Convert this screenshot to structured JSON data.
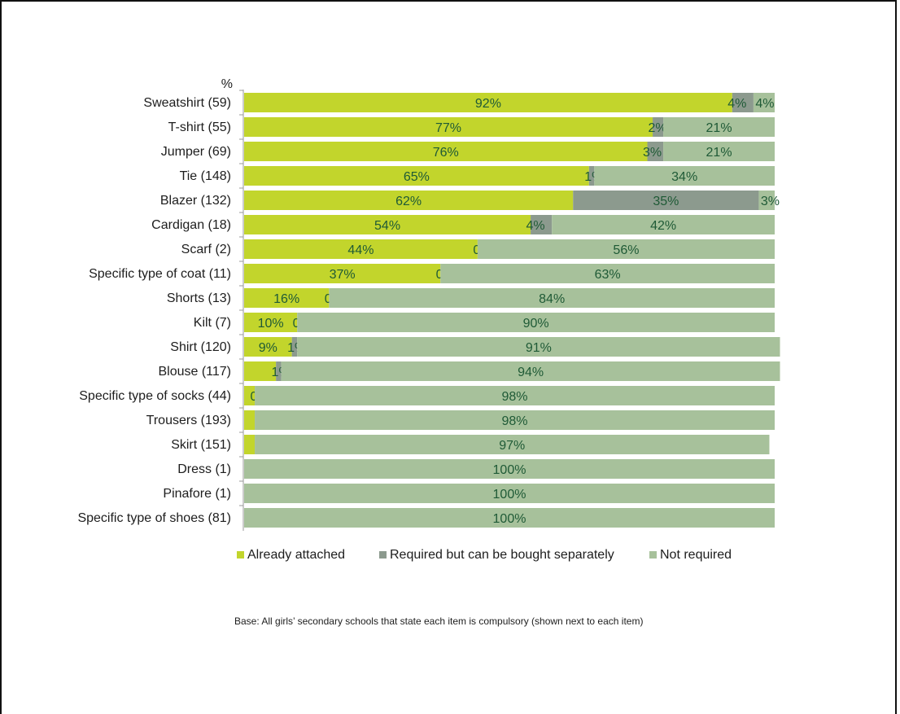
{
  "chart_data": {
    "type": "bar",
    "orientation": "horizontal",
    "stacked": true,
    "unit_label": "%",
    "categories": [
      "Sweatshirt (59)",
      "T-shirt (55)",
      "Jumper (69)",
      "Tie (148)",
      "Blazer (132)",
      "Cardigan (18)",
      "Scarf (2)",
      "Specific type of coat (11)",
      "Shorts (13)",
      "Kilt (7)",
      "Shirt (120)",
      "Blouse (117)",
      "Specific type of socks (44)",
      "Trousers (193)",
      "Skirt (151)",
      "Dress (1)",
      "Pinafore (1)",
      "Specific type of shoes (81)"
    ],
    "series": [
      {
        "name": "Already attached",
        "color": "#c2d52c",
        "values": [
          92,
          77,
          76,
          65,
          62,
          54,
          44,
          37,
          16,
          10,
          9,
          6,
          2,
          2,
          2,
          0,
          0,
          0
        ],
        "labels": [
          "92%",
          "77%",
          "76%",
          "65%",
          "62%",
          "54%",
          "44%",
          "37%",
          "16%",
          "10%",
          "9%",
          "",
          "",
          "",
          "",
          "",
          "",
          ""
        ]
      },
      {
        "name": "Required but can be bought separately",
        "color": "#8c9a8e",
        "values": [
          4,
          2,
          3,
          1,
          35,
          4,
          0,
          0,
          0,
          0,
          1,
          1,
          0,
          0,
          0,
          0,
          0,
          0
        ],
        "labels": [
          "4%",
          "2%",
          "3%",
          "1%",
          "35%",
          "4%",
          "0%",
          "0%",
          "0%",
          "0%",
          "1%",
          "1%",
          "0%",
          "",
          "",
          "",
          "",
          ""
        ]
      },
      {
        "name": "Not required",
        "color": "#a7c19b",
        "values": [
          4,
          21,
          21,
          34,
          3,
          42,
          56,
          63,
          84,
          90,
          91,
          94,
          98,
          98,
          97,
          100,
          100,
          100
        ],
        "labels": [
          "4%",
          "21%",
          "21%",
          "34%",
          "3%",
          "42%",
          "56%",
          "63%",
          "84%",
          "90%",
          "91%",
          "94%",
          "98%",
          "98%",
          "97%",
          "100%",
          "100%",
          "100%"
        ]
      }
    ],
    "xlim": [
      0,
      100
    ],
    "grid": false,
    "legend_position": "bottom"
  },
  "footnote": "Base: All girls’ secondary schools that state each item is compulsory (shown next to each item)"
}
